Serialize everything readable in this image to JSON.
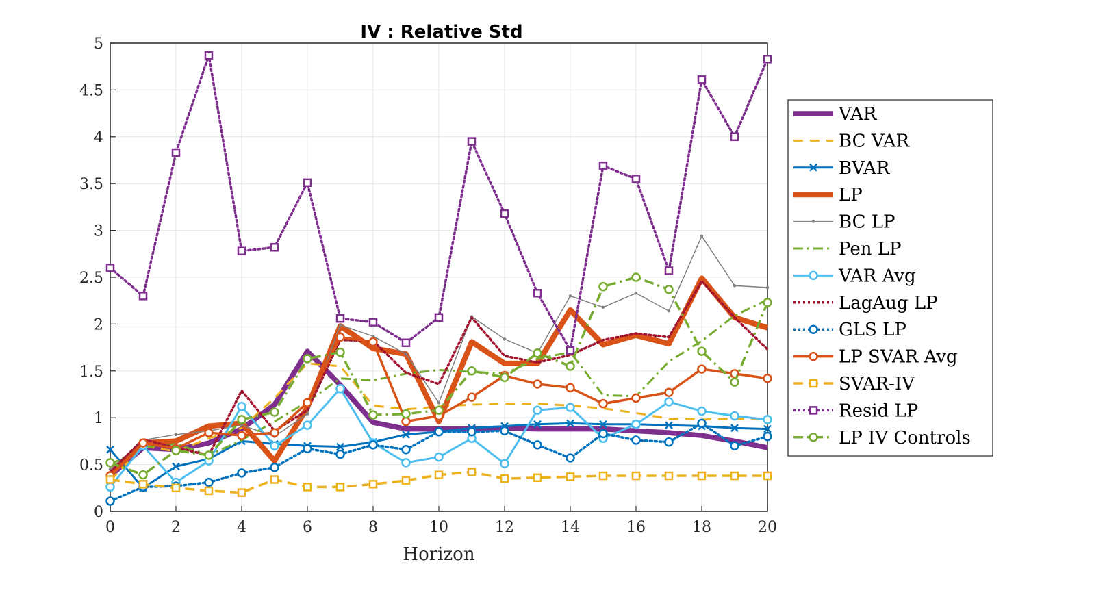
{
  "chart_data": {
    "type": "line",
    "title": "IV : Relative Std",
    "xlabel": "Horizon",
    "ylabel": "",
    "xlim": [
      0,
      20
    ],
    "ylim": [
      0,
      5
    ],
    "xticks": [
      "0",
      "2",
      "4",
      "6",
      "8",
      "10",
      "12",
      "14",
      "16",
      "18",
      "20"
    ],
    "yticks": [
      "0",
      "0.5",
      "1",
      "1.5",
      "2",
      "2.5",
      "3",
      "3.5",
      "4",
      "4.5",
      "5"
    ],
    "grid": true,
    "legend_position": "right",
    "x": [
      0,
      1,
      2,
      3,
      4,
      5,
      6,
      7,
      8,
      9,
      10,
      11,
      12,
      13,
      14,
      15,
      16,
      17,
      18,
      19,
      20
    ],
    "series": [
      {
        "name": "VAR",
        "color": "#7E2F8E",
        "values": [
          0.38,
          0.68,
          0.66,
          0.73,
          0.88,
          1.14,
          1.71,
          1.35,
          0.95,
          0.88,
          0.88,
          0.88,
          0.89,
          0.88,
          0.88,
          0.88,
          0.86,
          0.84,
          0.81,
          0.75,
          0.68
        ]
      },
      {
        "name": "BC VAR",
        "color": "#EDB120",
        "values": [
          0.33,
          0.7,
          0.64,
          0.78,
          0.89,
          1.21,
          1.58,
          1.55,
          1.13,
          1.09,
          1.12,
          1.14,
          1.15,
          1.15,
          1.13,
          1.1,
          1.05,
          0.99,
          0.98,
          0.99,
          0.98
        ]
      },
      {
        "name": "BVAR",
        "color": "#0072BD",
        "values": [
          0.66,
          0.25,
          0.48,
          0.56,
          0.75,
          0.72,
          0.7,
          0.69,
          0.74,
          0.82,
          0.85,
          0.89,
          0.91,
          0.93,
          0.94,
          0.93,
          0.93,
          0.92,
          0.91,
          0.89,
          0.88
        ]
      },
      {
        "name": "LP",
        "color": "#D95319",
        "values": [
          0.4,
          0.73,
          0.75,
          0.91,
          0.94,
          0.54,
          1.11,
          1.98,
          1.74,
          1.68,
          0.96,
          1.81,
          1.58,
          1.58,
          2.15,
          1.78,
          1.88,
          1.79,
          2.49,
          2.07,
          1.96
        ]
      },
      {
        "name": "BC LP",
        "color": "#808080",
        "values": [
          0.45,
          0.76,
          0.82,
          0.86,
          0.92,
          0.8,
          1.04,
          1.99,
          1.87,
          1.68,
          1.16,
          2.08,
          1.84,
          1.69,
          2.3,
          2.18,
          2.33,
          2.14,
          2.94,
          2.41,
          2.39
        ]
      },
      {
        "name": "Pen LP",
        "color": "#77AC30",
        "values": [
          0.5,
          0.68,
          0.72,
          0.6,
          0.76,
          0.96,
          1.17,
          1.42,
          1.4,
          1.47,
          1.51,
          1.49,
          1.47,
          1.63,
          1.7,
          1.24,
          1.23,
          1.6,
          1.82,
          2.09,
          2.26
        ]
      },
      {
        "name": "VAR Avg",
        "color": "#4DBEEE",
        "values": [
          0.26,
          0.7,
          0.31,
          0.54,
          1.12,
          0.7,
          0.92,
          1.31,
          0.73,
          0.52,
          0.58,
          0.78,
          0.51,
          1.08,
          1.11,
          0.78,
          0.93,
          1.17,
          1.07,
          1.02,
          0.98
        ]
      },
      {
        "name": "LagAug LP",
        "color": "#A2142F",
        "values": [
          0.42,
          0.77,
          0.68,
          0.6,
          1.29,
          0.86,
          1.08,
          1.83,
          1.82,
          1.48,
          1.36,
          2.07,
          1.66,
          1.59,
          1.67,
          1.83,
          1.9,
          1.86,
          2.46,
          2.07,
          1.73
        ]
      },
      {
        "name": "GLS LP",
        "color": "#0072BD",
        "values": [
          0.11,
          0.26,
          0.27,
          0.31,
          0.41,
          0.47,
          0.67,
          0.61,
          0.71,
          0.66,
          0.85,
          0.85,
          0.86,
          0.71,
          0.57,
          0.83,
          0.76,
          0.74,
          0.94,
          0.7,
          0.8
        ]
      },
      {
        "name": "LP SVAR Avg",
        "color": "#D95319",
        "values": [
          0.38,
          0.73,
          0.67,
          0.84,
          0.81,
          0.84,
          1.16,
          1.86,
          1.81,
          0.96,
          1.02,
          1.22,
          1.45,
          1.36,
          1.32,
          1.15,
          1.21,
          1.27,
          1.52,
          1.47,
          1.42
        ]
      },
      {
        "name": "SVAR-IV",
        "color": "#EDB120",
        "values": [
          0.34,
          0.29,
          0.25,
          0.22,
          0.2,
          0.34,
          0.26,
          0.26,
          0.29,
          0.33,
          0.39,
          0.42,
          0.35,
          0.36,
          0.37,
          0.38,
          0.38,
          0.38,
          0.38,
          0.38,
          0.38
        ]
      },
      {
        "name": "Resid LP",
        "color": "#7E2F8E",
        "values": [
          2.6,
          2.3,
          3.83,
          4.87,
          2.78,
          2.82,
          3.51,
          2.06,
          2.02,
          1.8,
          2.07,
          3.95,
          3.18,
          2.33,
          1.72,
          3.69,
          3.55,
          2.57,
          4.61,
          4.0,
          4.83
        ]
      },
      {
        "name": "LP IV Controls",
        "color": "#77AC30",
        "values": [
          0.52,
          0.39,
          0.65,
          0.6,
          0.98,
          1.06,
          1.63,
          1.7,
          1.03,
          1.04,
          1.08,
          1.5,
          1.43,
          1.69,
          1.55,
          2.4,
          2.5,
          2.37,
          1.71,
          1.38,
          2.23
        ]
      }
    ]
  }
}
